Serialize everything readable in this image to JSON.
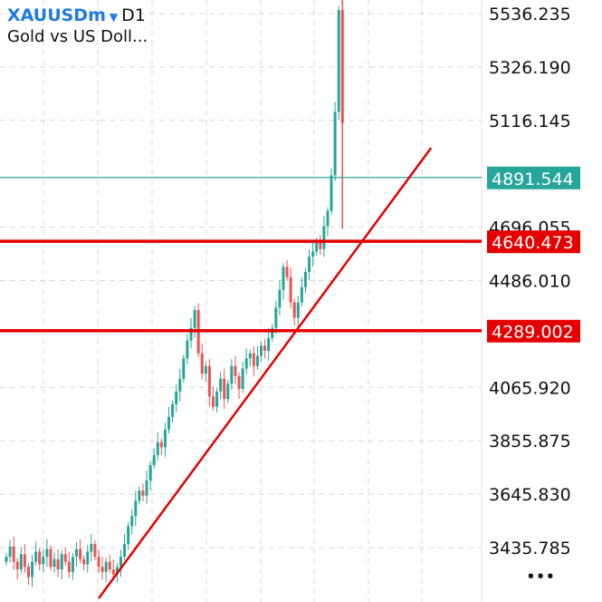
{
  "header": {
    "symbol": "XAUUSDm",
    "timeframe": "D1",
    "description": "Gold vs US Doll..."
  },
  "menu": {
    "more_icon": "more-horizontal-icon",
    "label": "•••"
  },
  "colors": {
    "bull": "#26a69a",
    "bear": "#ef5350",
    "line": "#e50000",
    "price_line": "#26a69a",
    "grid": "#d8d8d8"
  },
  "chart_data": {
    "type": "candlestick",
    "title": "",
    "ylim": [
      3250,
      5590
    ],
    "grid": true,
    "y_ticks": [
      "5536.235",
      "5326.190",
      "5116.145",
      "4696.055",
      "4486.010",
      "4065.920",
      "3855.875",
      "3645.830",
      "3435.785"
    ],
    "closes": [
      3400,
      3440,
      3380,
      3350,
      3410,
      3360,
      3320,
      3380,
      3420,
      3370,
      3400,
      3430,
      3360,
      3390,
      3350,
      3410,
      3380,
      3340,
      3400,
      3430,
      3390,
      3370,
      3420,
      3450,
      3400,
      3360,
      3340,
      3380,
      3350,
      3330,
      3360,
      3400,
      3450,
      3520,
      3560,
      3620,
      3660,
      3640,
      3700,
      3760,
      3800,
      3850,
      3830,
      3900,
      3950,
      4000,
      4050,
      4100,
      4180,
      4250,
      4300,
      4370,
      4200,
      4120,
      4150,
      4030,
      3990,
      4050,
      4100,
      4020,
      4080,
      4150,
      4110,
      4060,
      4140,
      4180,
      4200,
      4150,
      4190,
      4230,
      4210,
      4260,
      4300,
      4380,
      4450,
      4540,
      4500,
      4400,
      4340,
      4400,
      4460,
      4520,
      4580,
      4600,
      4640,
      4610,
      4700,
      4760,
      4900,
      5150,
      5550
    ],
    "last_candle": {
      "open": 5550,
      "high": 5590,
      "low": 4690,
      "close": 4891.544
    },
    "current_price": {
      "value": 4891.544,
      "label": "4891.544"
    },
    "horizontal_lines": [
      {
        "value": 4640.473,
        "label": "4640.473"
      },
      {
        "value": 4289.002,
        "label": "4289.002"
      }
    ],
    "trendline": {
      "from": {
        "bar": 25,
        "price": 3236
      },
      "to": {
        "bar": 115,
        "price": 5008
      }
    }
  }
}
